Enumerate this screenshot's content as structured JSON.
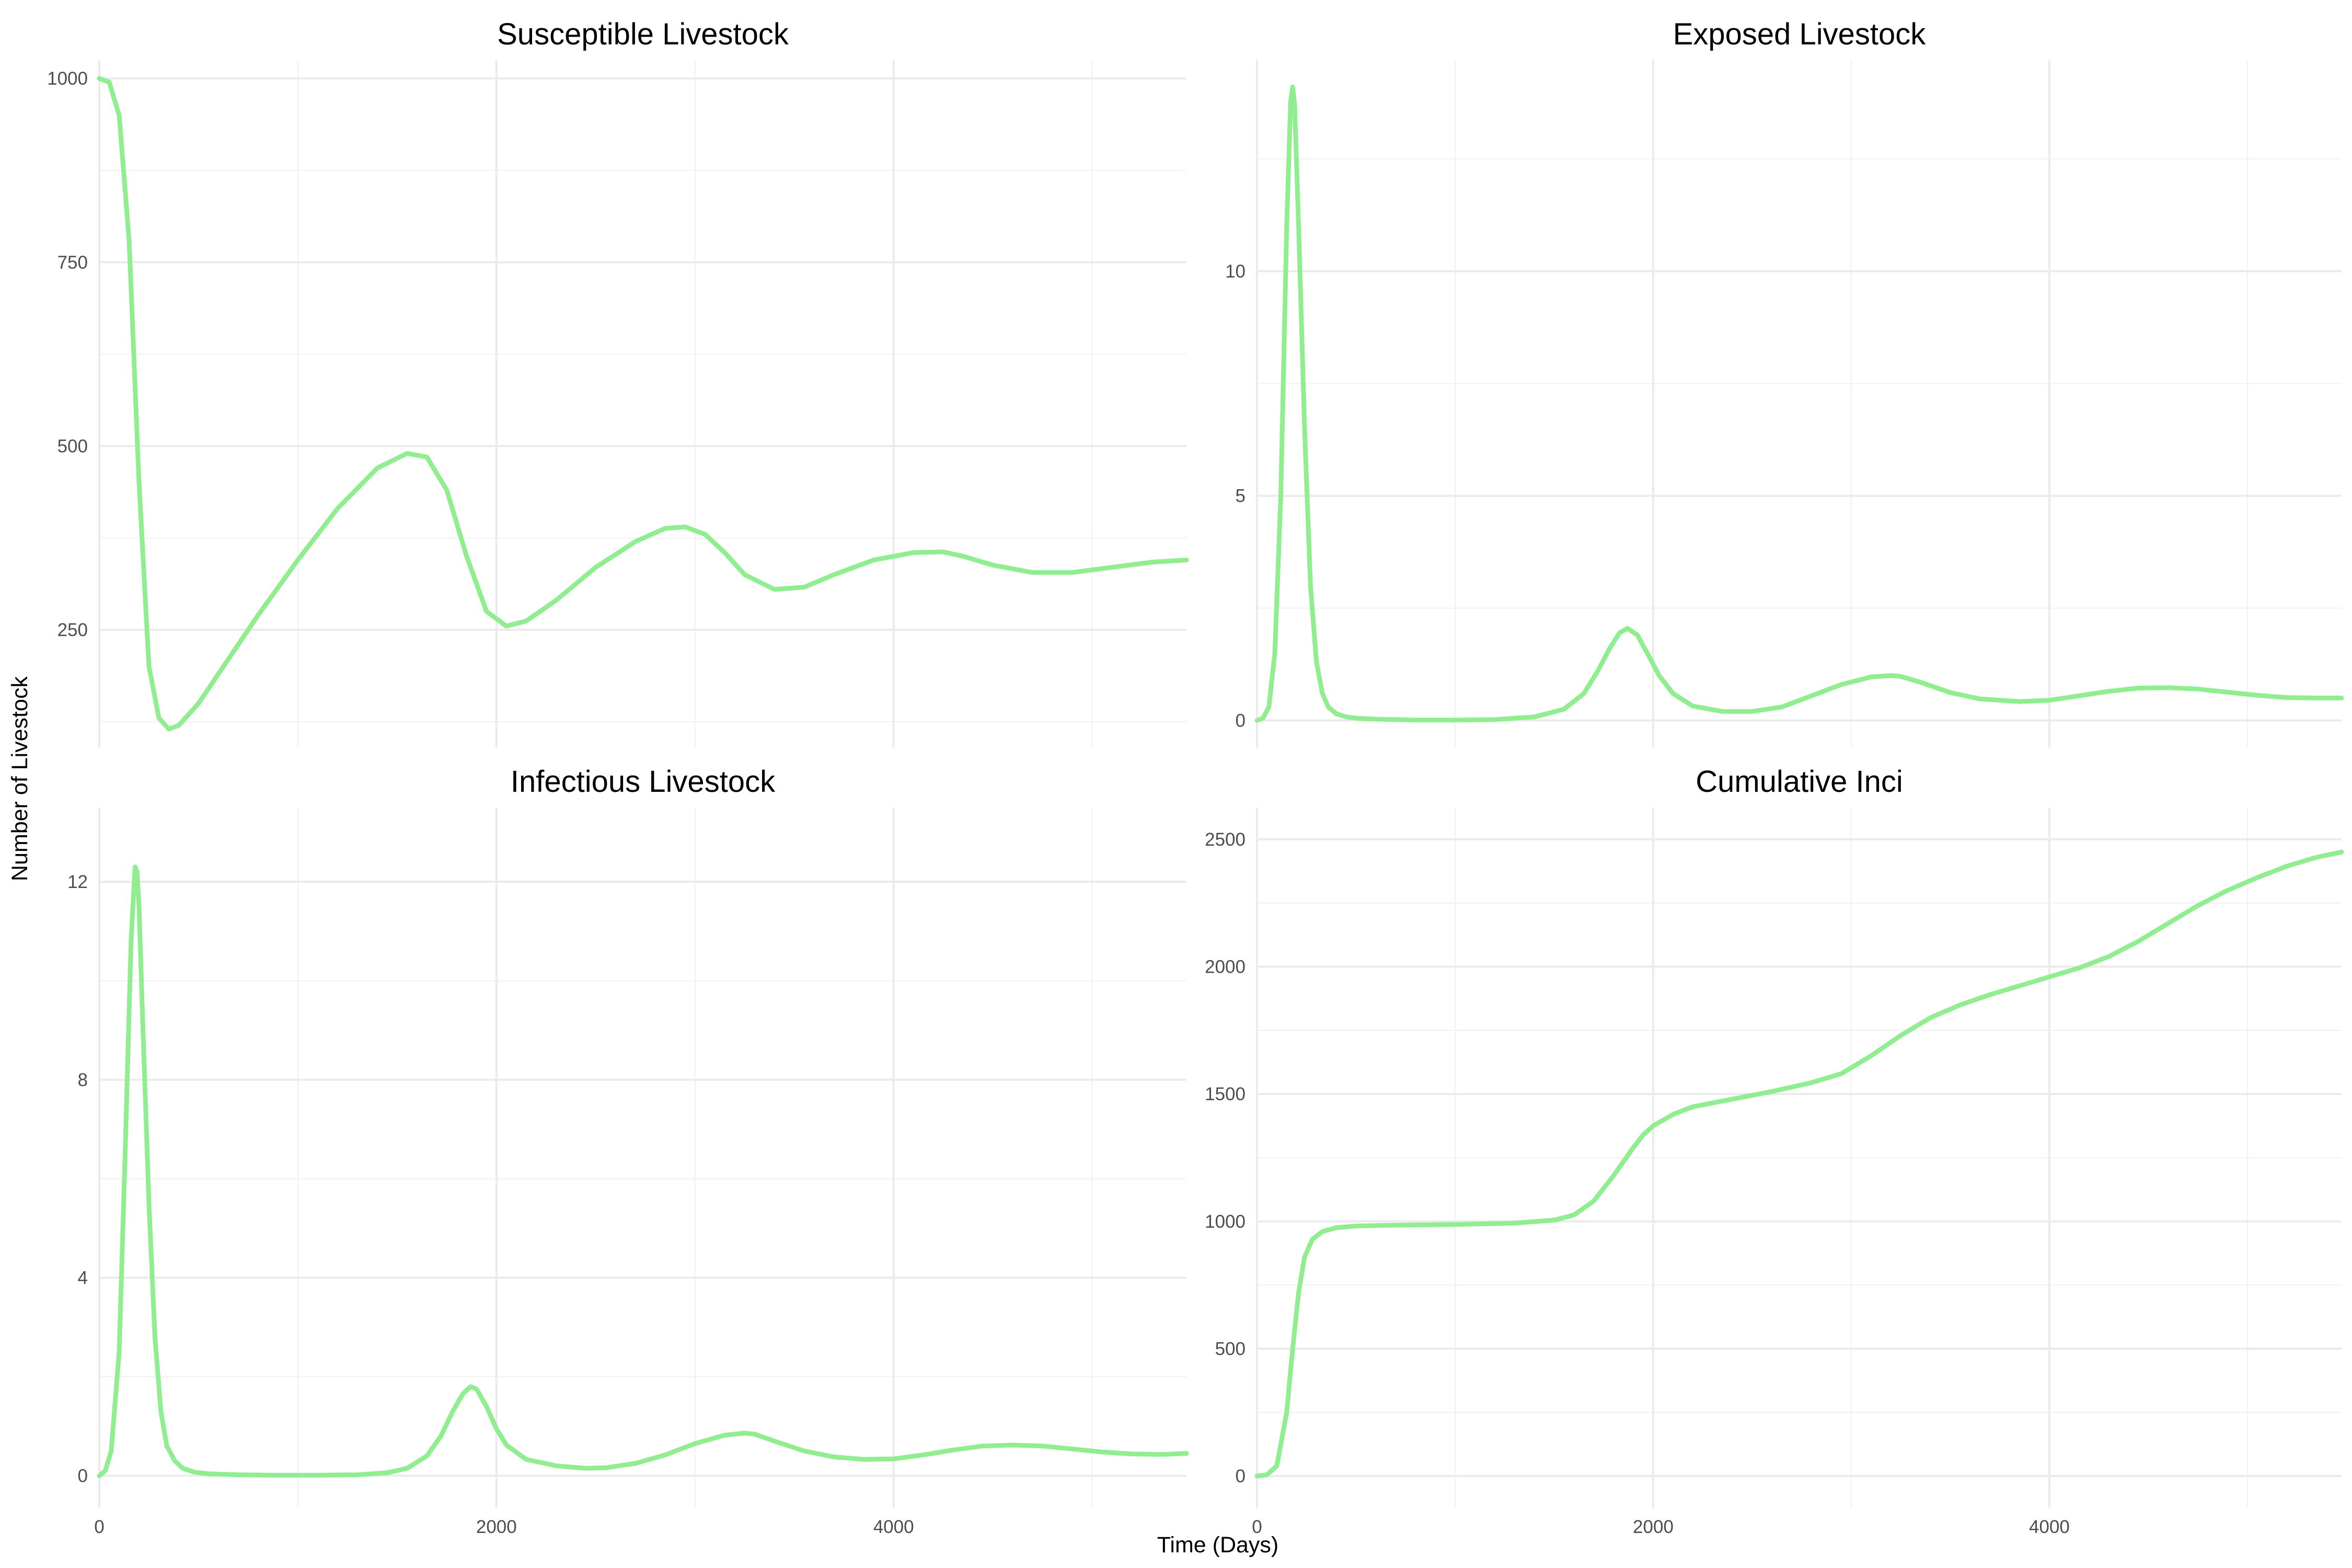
{
  "figure": {
    "xlabel": "Time (Days)",
    "ylabel": "Number of Livestock",
    "line_color": "#90EE90"
  },
  "chart_data": [
    {
      "type": "line",
      "title": "Susceptible Livestock",
      "xlabel": "Time (Days)",
      "ylabel": "Number of Livestock",
      "xlim": [
        0,
        5475
      ],
      "ylim": [
        90,
        1025
      ],
      "x_ticks": [
        0,
        2000,
        4000
      ],
      "x_tick_labels": [
        "",
        "",
        ""
      ],
      "y_ticks": [
        250,
        500,
        750,
        1000
      ],
      "y_tick_labels": [
        "250",
        "500",
        "750",
        "1000"
      ],
      "grid": true,
      "series": [
        {
          "x": [
            0,
            50,
            100,
            150,
            200,
            250,
            300,
            350,
            400,
            500,
            600,
            800,
            1000,
            1200,
            1400,
            1550,
            1650,
            1750,
            1850,
            1950,
            2050,
            2150,
            2300,
            2500,
            2700,
            2850,
            2950,
            3050,
            3150,
            3250,
            3400,
            3550,
            3700,
            3900,
            4100,
            4250,
            4350,
            4500,
            4700,
            4900,
            5100,
            5300,
            5475
          ],
          "y": [
            1000,
            995,
            950,
            780,
            450,
            200,
            130,
            115,
            120,
            150,
            190,
            270,
            345,
            415,
            470,
            490,
            485,
            440,
            350,
            275,
            255,
            262,
            290,
            335,
            370,
            388,
            390,
            380,
            355,
            325,
            305,
            308,
            325,
            345,
            355,
            356,
            350,
            338,
            328,
            328,
            335,
            342,
            345
          ]
        }
      ]
    },
    {
      "type": "line",
      "title": "Exposed Livestock",
      "xlabel": "Time (Days)",
      "ylabel": "Number of Livestock",
      "xlim": [
        0,
        5475
      ],
      "ylim": [
        -0.6,
        14.7
      ],
      "x_ticks": [
        0,
        2000,
        4000
      ],
      "x_tick_labels": [
        "",
        "",
        ""
      ],
      "y_ticks": [
        0,
        5,
        10
      ],
      "y_tick_labels": [
        "0",
        "5",
        "10"
      ],
      "grid": true,
      "series": [
        {
          "x": [
            0,
            30,
            60,
            90,
            120,
            150,
            170,
            180,
            190,
            210,
            240,
            270,
            300,
            330,
            360,
            400,
            450,
            500,
            600,
            800,
            1000,
            1200,
            1400,
            1550,
            1650,
            1720,
            1780,
            1830,
            1870,
            1920,
            1970,
            2030,
            2100,
            2200,
            2350,
            2500,
            2650,
            2800,
            2950,
            3100,
            3200,
            3250,
            3350,
            3500,
            3650,
            3850,
            4000,
            4150,
            4300,
            4450,
            4600,
            4750,
            4900,
            5050,
            5200,
            5350,
            5475
          ],
          "y": [
            0.0,
            0.05,
            0.3,
            1.5,
            5.0,
            11.0,
            13.8,
            14.1,
            13.7,
            11.0,
            6.5,
            3.0,
            1.3,
            0.6,
            0.3,
            0.15,
            0.08,
            0.05,
            0.03,
            0.01,
            0.01,
            0.02,
            0.08,
            0.25,
            0.6,
            1.1,
            1.6,
            1.95,
            2.05,
            1.9,
            1.5,
            1.0,
            0.6,
            0.32,
            0.2,
            0.2,
            0.3,
            0.55,
            0.8,
            0.97,
            1.0,
            0.98,
            0.85,
            0.62,
            0.48,
            0.42,
            0.45,
            0.55,
            0.65,
            0.72,
            0.73,
            0.7,
            0.63,
            0.56,
            0.51,
            0.5,
            0.5
          ]
        }
      ]
    },
    {
      "type": "line",
      "title": "Infectious Livestock",
      "xlabel": "Time (Days)",
      "ylabel": "Number of Livestock",
      "xlim": [
        0,
        5475
      ],
      "ylim": [
        -0.65,
        13.5
      ],
      "x_ticks": [
        0,
        2000,
        4000
      ],
      "x_tick_labels": [
        "0",
        "2000",
        "4000"
      ],
      "y_ticks": [
        0,
        4,
        8,
        12
      ],
      "y_tick_labels": [
        "0",
        "4",
        "8",
        "12"
      ],
      "grid": true,
      "series": [
        {
          "x": [
            0,
            30,
            60,
            100,
            130,
            160,
            180,
            190,
            200,
            220,
            250,
            280,
            310,
            340,
            380,
            420,
            480,
            550,
            700,
            900,
            1100,
            1300,
            1450,
            1550,
            1650,
            1720,
            1780,
            1830,
            1870,
            1900,
            1950,
            2000,
            2050,
            2150,
            2300,
            2450,
            2550,
            2700,
            2850,
            3000,
            3150,
            3250,
            3300,
            3400,
            3550,
            3700,
            3850,
            4000,
            4150,
            4300,
            4450,
            4600,
            4750,
            4900,
            5050,
            5200,
            5350,
            5475
          ],
          "y": [
            0.0,
            0.1,
            0.5,
            2.5,
            6.5,
            10.8,
            12.3,
            12.2,
            11.5,
            9.0,
            5.5,
            2.8,
            1.3,
            0.6,
            0.3,
            0.15,
            0.07,
            0.04,
            0.02,
            0.01,
            0.01,
            0.02,
            0.06,
            0.15,
            0.4,
            0.8,
            1.3,
            1.65,
            1.8,
            1.75,
            1.4,
            0.95,
            0.62,
            0.33,
            0.2,
            0.15,
            0.16,
            0.25,
            0.42,
            0.65,
            0.82,
            0.86,
            0.84,
            0.7,
            0.5,
            0.38,
            0.33,
            0.34,
            0.42,
            0.52,
            0.6,
            0.62,
            0.6,
            0.54,
            0.48,
            0.44,
            0.43,
            0.45
          ]
        }
      ]
    },
    {
      "type": "line",
      "title": "Cumulative Inci",
      "xlabel": "Time (Days)",
      "ylabel": "Number of Livestock",
      "xlim": [
        0,
        5475
      ],
      "ylim": [
        -125,
        2625
      ],
      "x_ticks": [
        0,
        2000,
        4000
      ],
      "x_tick_labels": [
        "0",
        "2000",
        "4000"
      ],
      "y_ticks": [
        0,
        500,
        1000,
        1500,
        2000,
        2500
      ],
      "y_tick_labels": [
        "0",
        "500",
        "1000",
        "1500",
        "2000",
        "2500"
      ],
      "grid": true,
      "series": [
        {
          "x": [
            0,
            50,
            100,
            150,
            180,
            210,
            240,
            280,
            330,
            400,
            500,
            700,
            1000,
            1300,
            1500,
            1600,
            1700,
            1800,
            1900,
            1950,
            2000,
            2100,
            2200,
            2400,
            2600,
            2800,
            2950,
            3100,
            3250,
            3400,
            3550,
            3700,
            3850,
            4000,
            4150,
            4300,
            4450,
            4600,
            4750,
            4900,
            5050,
            5200,
            5350,
            5475
          ],
          "y": [
            0,
            5,
            40,
            250,
            500,
            720,
            860,
            930,
            960,
            975,
            982,
            985,
            988,
            993,
            1005,
            1025,
            1080,
            1180,
            1290,
            1340,
            1375,
            1420,
            1450,
            1480,
            1510,
            1545,
            1580,
            1650,
            1730,
            1800,
            1850,
            1890,
            1925,
            1960,
            1995,
            2040,
            2100,
            2170,
            2240,
            2300,
            2350,
            2395,
            2430,
            2450
          ]
        }
      ]
    }
  ]
}
